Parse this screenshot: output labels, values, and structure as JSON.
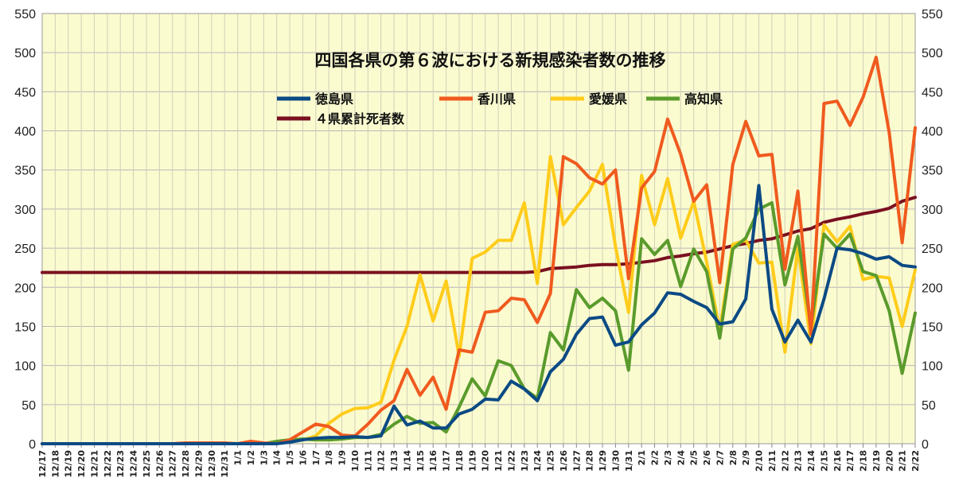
{
  "chart_data": {
    "type": "line",
    "title": "四国各県の第６波における新規感染者数の推移",
    "xlabel": "",
    "ylabel": "",
    "ylim": [
      0,
      550
    ],
    "yticks": [
      0,
      50,
      100,
      150,
      200,
      250,
      300,
      350,
      400,
      450,
      500,
      550
    ],
    "y2ticks": [
      0,
      50,
      100,
      150,
      200,
      250,
      300,
      350,
      400,
      450,
      500,
      550
    ],
    "grid": "horizontal and vertical",
    "legend_position": "top-center",
    "background_color": "#fbfbd0",
    "x": [
      "12/17",
      "12/18",
      "12/19",
      "12/20",
      "12/21",
      "12/22",
      "12/23",
      "12/24",
      "12/25",
      "12/26",
      "12/27",
      "12/28",
      "12/29",
      "12/30",
      "12/31",
      "1/1",
      "1/2",
      "1/3",
      "1/4",
      "1/5",
      "1/6",
      "1/7",
      "1/8",
      "1/9",
      "1/10",
      "1/11",
      "1/12",
      "1/13",
      "1/14",
      "1/15",
      "1/16",
      "1/17",
      "1/18",
      "1/19",
      "1/20",
      "1/21",
      "1/22",
      "1/23",
      "1/24",
      "1/25",
      "1/26",
      "1/27",
      "1/28",
      "1/29",
      "1/30",
      "1/31",
      "2/1",
      "2/2",
      "2/3",
      "2/4",
      "2/5",
      "2/6",
      "2/7",
      "2/8",
      "2/9",
      "2/10",
      "2/11",
      "2/12",
      "2/13",
      "2/14",
      "2/15",
      "2/16",
      "2/17",
      "2/18",
      "2/19",
      "2/20",
      "2/21",
      "2/22"
    ],
    "series": [
      {
        "name": "徳島県",
        "color": "#0b4a84",
        "values": [
          0,
          0,
          0,
          0,
          0,
          0,
          0,
          0,
          0,
          0,
          0,
          0,
          0,
          0,
          0,
          0,
          0,
          0,
          0,
          2,
          5,
          7,
          8,
          8,
          9,
          8,
          10,
          48,
          24,
          29,
          20,
          20,
          38,
          44,
          57,
          56,
          80,
          70,
          55,
          92,
          108,
          140,
          160,
          162,
          126,
          130,
          152,
          167,
          193,
          191,
          182,
          174,
          153,
          156,
          185,
          330,
          172,
          130,
          158,
          130,
          185,
          250,
          248,
          243,
          236,
          239,
          228,
          226
        ]
      },
      {
        "name": "香川県",
        "color": "#f05a1e",
        "values": [
          0,
          0,
          0,
          0,
          0,
          0,
          0,
          0,
          0,
          0,
          0,
          1,
          1,
          1,
          1,
          0,
          3,
          1,
          0,
          5,
          15,
          25,
          22,
          11,
          10,
          25,
          43,
          55,
          95,
          62,
          85,
          44,
          120,
          117,
          168,
          170,
          186,
          184,
          155,
          192,
          367,
          358,
          340,
          332,
          350,
          211,
          327,
          348,
          415,
          370,
          310,
          331,
          206,
          357,
          412,
          368,
          370,
          223,
          323,
          140,
          435,
          438,
          407,
          443,
          494,
          398,
          257,
          404
        ]
      },
      {
        "name": "愛媛県",
        "color": "#ffcc1a",
        "values": [
          0,
          0,
          0,
          0,
          0,
          0,
          0,
          0,
          0,
          0,
          0,
          0,
          0,
          0,
          0,
          0,
          0,
          0,
          0,
          5,
          5,
          10,
          26,
          38,
          45,
          46,
          53,
          107,
          150,
          216,
          157,
          208,
          112,
          237,
          245,
          260,
          260,
          308,
          205,
          367,
          280,
          302,
          323,
          357,
          252,
          168,
          343,
          280,
          339,
          263,
          310,
          232,
          145,
          255,
          260,
          231,
          232,
          117,
          251,
          128,
          280,
          258,
          278,
          210,
          214,
          212,
          150,
          222
        ]
      },
      {
        "name": "高知県",
        "color": "#5a9b2c",
        "values": [
          0,
          0,
          0,
          0,
          0,
          0,
          0,
          0,
          0,
          0,
          0,
          0,
          0,
          0,
          0,
          0,
          0,
          0,
          3,
          5,
          6,
          5,
          5,
          6,
          8,
          8,
          12,
          25,
          35,
          26,
          27,
          15,
          47,
          83,
          61,
          106,
          100,
          70,
          58,
          142,
          120,
          197,
          174,
          186,
          170,
          94,
          262,
          242,
          260,
          201,
          249,
          220,
          135,
          249,
          263,
          300,
          308,
          203,
          265,
          150,
          268,
          250,
          268,
          220,
          215,
          170,
          90,
          167
        ]
      },
      {
        "name": "４県累計死者数",
        "color": "#7a1020",
        "values": [
          219,
          219,
          219,
          219,
          219,
          219,
          219,
          219,
          219,
          219,
          219,
          219,
          219,
          219,
          219,
          219,
          219,
          219,
          219,
          219,
          219,
          219,
          219,
          219,
          219,
          219,
          219,
          219,
          219,
          219,
          219,
          219,
          219,
          219,
          219,
          219,
          219,
          219,
          220,
          224,
          225,
          226,
          228,
          229,
          229,
          230,
          232,
          234,
          238,
          240,
          243,
          245,
          249,
          253,
          256,
          260,
          262,
          267,
          272,
          275,
          283,
          287,
          290,
          294,
          297,
          301,
          310,
          315
        ]
      }
    ]
  }
}
